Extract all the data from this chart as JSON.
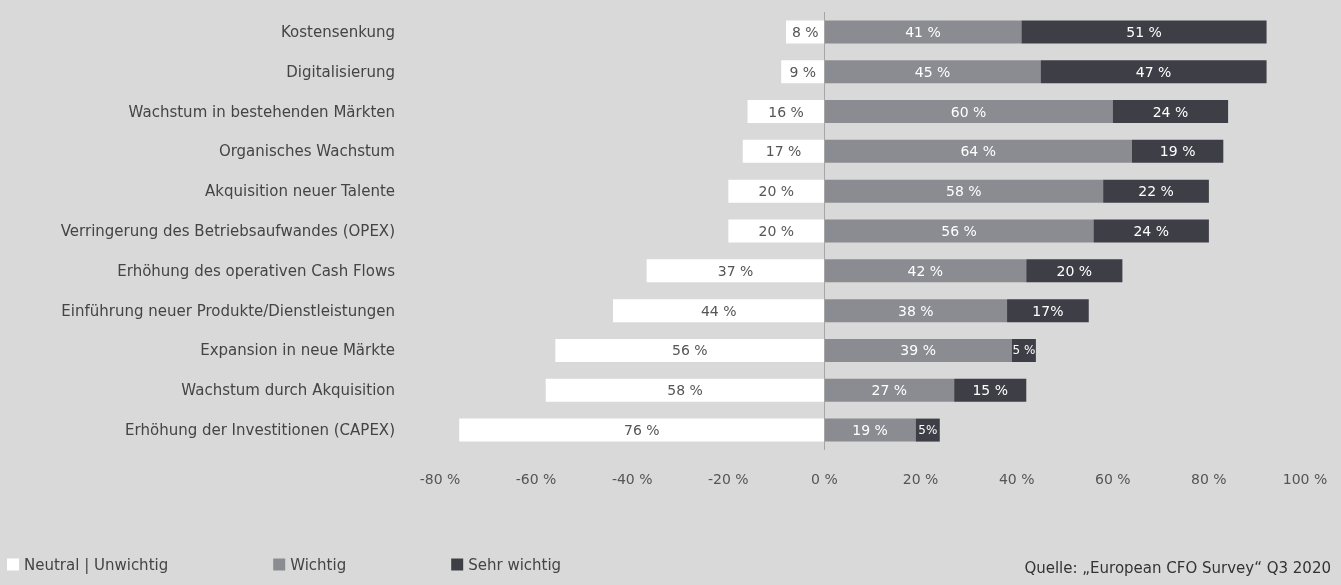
{
  "chart_data": {
    "type": "bar",
    "orientation": "horizontal",
    "categories": [
      "Kostensenkung",
      "Digitalisierung",
      "Wachstum in bestehenden Märkten",
      "Organisches Wachstum",
      "Akquisition neuer Talente",
      "Verringerung des Betriebsaufwandes (OPEX)",
      "Erhöhung des operativen Cash Flows",
      "Einführung neuer Produkte/Dienstleistungen",
      "Expansion in neue Märkte",
      "Wachstum durch Akquisition",
      "Erhöhung der Investitionen (CAPEX)"
    ],
    "series": [
      {
        "name": "Neutral | Unwichtig",
        "color": "#ffffff",
        "base": [
          -8,
          -9,
          -16,
          -17,
          -20,
          -20,
          -37,
          -44,
          -56,
          -58,
          -76
        ],
        "values": [
          8,
          9,
          16,
          17,
          20,
          20,
          37,
          44,
          56,
          58,
          76
        ],
        "value_labels": [
          "8 %",
          "9 %",
          "16 %",
          "17 %",
          "20 %",
          "20 %",
          "37 %",
          "44 %",
          "56 %",
          "58 %",
          "76 %"
        ]
      },
      {
        "name": "Wichtig",
        "color": "#8b8c91",
        "base": [
          0,
          0,
          0,
          0,
          0,
          0,
          0,
          0,
          0,
          0,
          0
        ],
        "values": [
          41,
          45,
          60,
          64,
          58,
          56,
          42,
          38,
          39,
          27,
          19
        ],
        "value_labels": [
          "41 %",
          "45 %",
          "60 %",
          "64 %",
          "58 %",
          "56 %",
          "42 %",
          "38 %",
          "39 %",
          "27 %",
          "19 %"
        ]
      },
      {
        "name": "Sehr wichtig",
        "color": "#3d3e46",
        "base": [
          41,
          45,
          60,
          64,
          58,
          56,
          42,
          38,
          39,
          27,
          19
        ],
        "values": [
          51,
          47,
          24,
          19,
          22,
          24,
          20,
          17,
          5,
          15,
          5
        ],
        "value_labels": [
          "51 %",
          "47 %",
          "24 %",
          "19 %",
          "22 %",
          "24 %",
          "20 %",
          "17%",
          "5 %",
          "15 %",
          "5%"
        ]
      }
    ],
    "xlim": [
      -80,
      100
    ],
    "xticks": [
      {
        "value": -80,
        "label": "-80 %"
      },
      {
        "value": -60,
        "label": "-60 %"
      },
      {
        "value": -40,
        "label": "-40 %"
      },
      {
        "value": -20,
        "label": "-20 %"
      },
      {
        "value": 0,
        "label": "0 %"
      },
      {
        "value": 20,
        "label": "20 %"
      },
      {
        "value": 40,
        "label": "40 %"
      },
      {
        "value": 60,
        "label": "60 %"
      },
      {
        "value": 80,
        "label": "80 %"
      },
      {
        "value": 100,
        "label": "100 %"
      }
    ],
    "grid": false,
    "ref_lines": [
      {
        "axis": "x",
        "value": 0,
        "color": "#a6a6a6"
      }
    ],
    "legend": "bottom left",
    "annotations": [
      "Quelle: „European CFO Survey“ Q3 2020"
    ]
  }
}
